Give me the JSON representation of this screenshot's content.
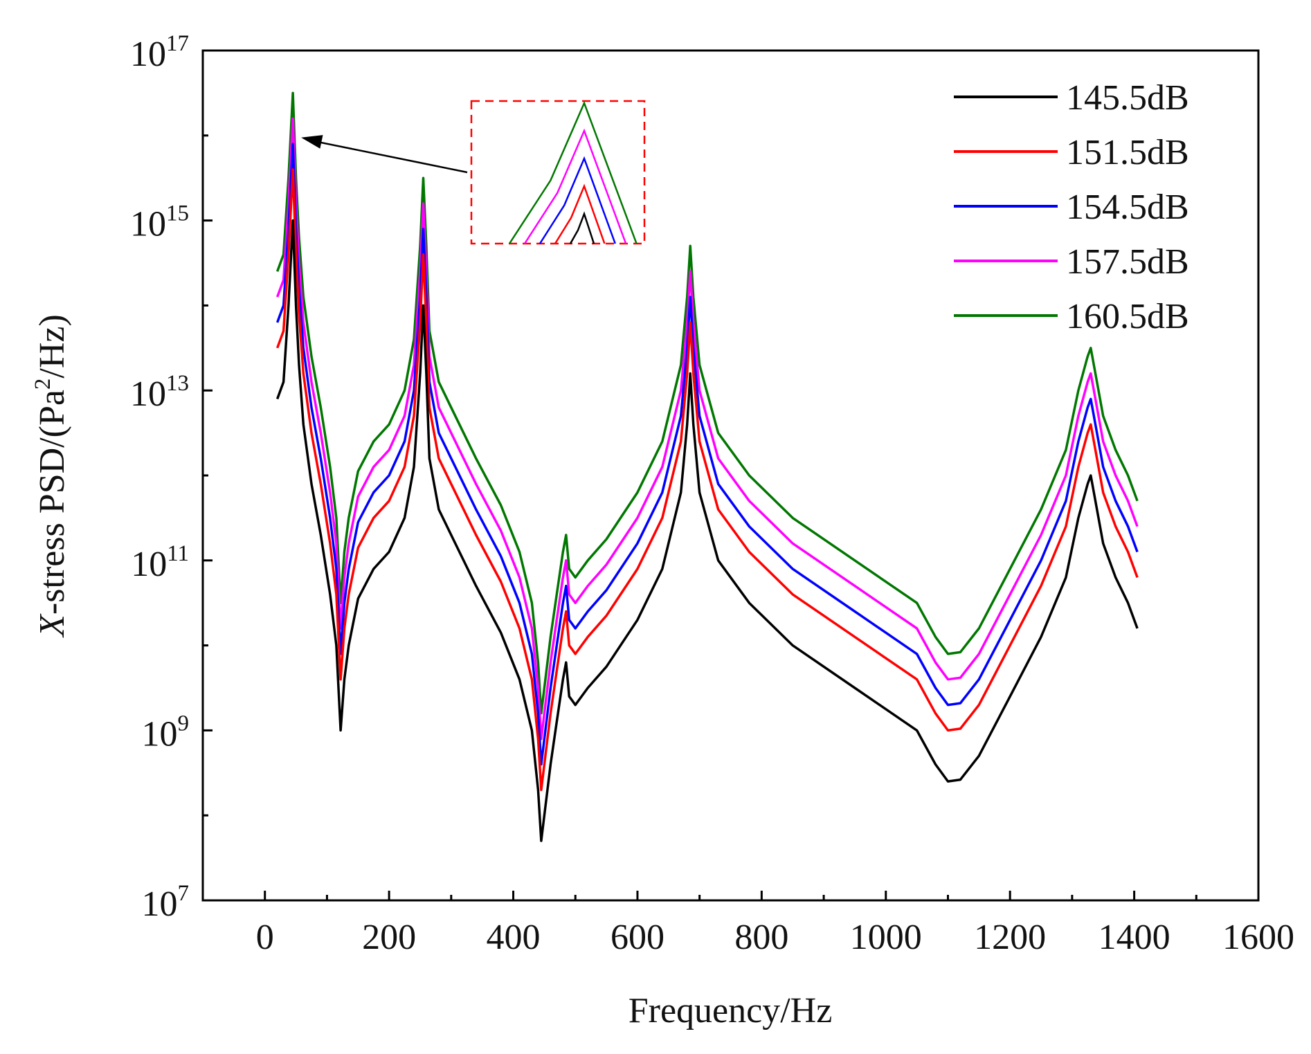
{
  "chart_data": {
    "type": "line",
    "xlabel": "Frequency/Hz",
    "ylabel": {
      "prefix": "X",
      "mid": "-stress PSD/(Pa",
      "sup": "2",
      "suffix": "/Hz)"
    },
    "xlim": [
      -100,
      1600
    ],
    "ylim_log10": [
      7,
      17
    ],
    "y_scale": "log",
    "x_ticks": [
      0,
      200,
      400,
      600,
      800,
      1000,
      1200,
      1400,
      1600
    ],
    "x_tick_labels": [
      "0",
      "200",
      "400",
      "600",
      "800",
      "1000",
      "1200",
      "1400",
      "1600"
    ],
    "y_ticks": [
      {
        "exp": 7,
        "base": "10",
        "power": "7"
      },
      {
        "exp": 9,
        "base": "10",
        "power": "9"
      },
      {
        "exp": 11,
        "base": "10",
        "power": "11"
      },
      {
        "exp": 13,
        "base": "10",
        "power": "13"
      },
      {
        "exp": 15,
        "base": "10",
        "power": "15"
      },
      {
        "exp": 17,
        "base": "10",
        "power": "17"
      }
    ],
    "legend_position": "top-right",
    "series": [
      {
        "name": "145.5dB",
        "color": "#000000",
        "offset_log10": 0
      },
      {
        "name": "151.5dB",
        "color": "#ff0000",
        "offset_log10": 0.6
      },
      {
        "name": "154.5dB",
        "color": "#0000ff",
        "offset_log10": 0.9
      },
      {
        "name": "157.5dB",
        "color": "#ff00ff",
        "offset_log10": 1.2
      },
      {
        "name": "160.5dB",
        "color": "#007700",
        "offset_log10": 1.5
      }
    ],
    "base_curve_log10": [
      [
        20,
        12.9
      ],
      [
        30,
        13.1
      ],
      [
        38,
        14.0
      ],
      [
        45,
        15.0
      ],
      [
        50,
        14.0
      ],
      [
        55,
        13.3
      ],
      [
        62,
        12.6
      ],
      [
        75,
        11.9
      ],
      [
        90,
        11.3
      ],
      [
        105,
        10.6
      ],
      [
        115,
        10.0
      ],
      [
        122,
        9.0
      ],
      [
        128,
        9.6
      ],
      [
        135,
        10.0
      ],
      [
        150,
        10.55
      ],
      [
        175,
        10.9
      ],
      [
        200,
        11.1
      ],
      [
        225,
        11.5
      ],
      [
        240,
        12.1
      ],
      [
        250,
        13.2
      ],
      [
        255,
        14.0
      ],
      [
        260,
        13.2
      ],
      [
        265,
        12.2
      ],
      [
        280,
        11.6
      ],
      [
        300,
        11.3
      ],
      [
        340,
        10.7
      ],
      [
        380,
        10.15
      ],
      [
        410,
        9.6
      ],
      [
        430,
        9.0
      ],
      [
        440,
        8.3
      ],
      [
        445,
        7.7
      ],
      [
        450,
        8.0
      ],
      [
        460,
        8.6
      ],
      [
        470,
        9.1
      ],
      [
        480,
        9.6
      ],
      [
        485,
        9.8
      ],
      [
        490,
        9.4
      ],
      [
        495,
        9.35
      ],
      [
        500,
        9.3
      ],
      [
        520,
        9.5
      ],
      [
        550,
        9.75
      ],
      [
        600,
        10.3
      ],
      [
        640,
        10.9
      ],
      [
        670,
        11.8
      ],
      [
        680,
        12.6
      ],
      [
        685,
        13.2
      ],
      [
        690,
        12.6
      ],
      [
        700,
        11.8
      ],
      [
        730,
        11.0
      ],
      [
        780,
        10.5
      ],
      [
        850,
        10.0
      ],
      [
        950,
        9.5
      ],
      [
        1050,
        9.0
      ],
      [
        1080,
        8.6
      ],
      [
        1100,
        8.4
      ],
      [
        1120,
        8.42
      ],
      [
        1150,
        8.7
      ],
      [
        1200,
        9.4
      ],
      [
        1250,
        10.1
      ],
      [
        1290,
        10.8
      ],
      [
        1310,
        11.5
      ],
      [
        1325,
        11.9
      ],
      [
        1330,
        12.0
      ],
      [
        1335,
        11.8
      ],
      [
        1350,
        11.2
      ],
      [
        1370,
        10.8
      ],
      [
        1390,
        10.5
      ],
      [
        1405,
        10.2
      ]
    ],
    "annotation": {
      "type": "arrow",
      "target_x": 45,
      "target_log10": 16.0
    }
  }
}
